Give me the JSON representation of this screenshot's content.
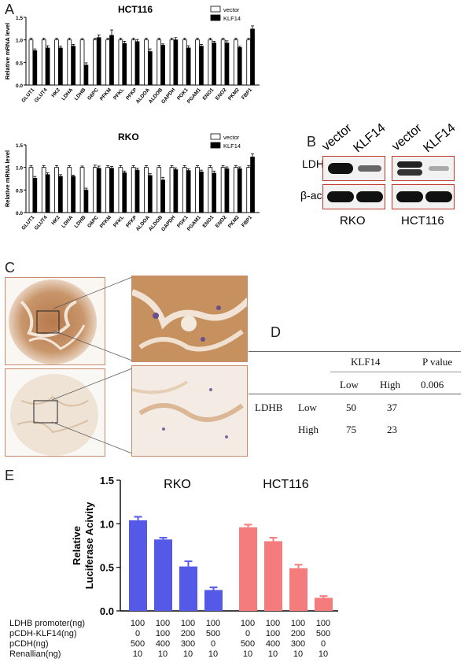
{
  "panels": {
    "a": "A",
    "b": "B",
    "c": "C",
    "d": "D",
    "e": "E"
  },
  "chart_data": [
    {
      "type": "bar",
      "title": "HCT116",
      "ylabel": "Relative mRNA level",
      "ylim": [
        0,
        1.5
      ],
      "yticks": [
        "0.0",
        "0.5",
        "1.0",
        "1.5"
      ],
      "categories": [
        "GLUT1",
        "GLUT4",
        "HK2",
        "LDHA",
        "LDHB",
        "G6PC",
        "PFKM",
        "PFKL",
        "PFKP",
        "ALDOA",
        "ALDOB",
        "GAPDH",
        "PGK1",
        "PGAM1",
        "ENO1",
        "ENO2",
        "PKM2",
        "FBP1"
      ],
      "series": [
        {
          "name": "vector",
          "color": "#ffffff",
          "values": [
            1,
            1,
            1,
            1,
            1,
            1,
            1,
            1,
            1,
            1,
            1,
            1,
            1,
            1,
            1,
            1,
            1,
            1
          ],
          "err": [
            0.04,
            0.04,
            0.04,
            0.04,
            0.03,
            0.04,
            0.04,
            0.04,
            0.04,
            0.04,
            0.04,
            0.04,
            0.04,
            0.04,
            0.04,
            0.04,
            0.04,
            0.04
          ]
        },
        {
          "name": "KLF14",
          "color": "#000000",
          "values": [
            0.76,
            0.82,
            0.82,
            0.86,
            0.44,
            1.05,
            1.1,
            0.92,
            0.96,
            0.74,
            0.88,
            1.0,
            0.82,
            0.86,
            0.93,
            0.93,
            0.83,
            1.24
          ],
          "err": [
            0.04,
            0.05,
            0.04,
            0.04,
            0.05,
            0.06,
            0.12,
            0.05,
            0.05,
            0.06,
            0.03,
            0.05,
            0.05,
            0.04,
            0.04,
            0.05,
            0.03,
            0.07
          ]
        }
      ]
    },
    {
      "type": "bar",
      "title": "RKO",
      "ylabel": "Relative mRNA level",
      "ylim": [
        0,
        1.5
      ],
      "yticks": [
        "0.0",
        "0.5",
        "1.0",
        "1.5"
      ],
      "categories": [
        "GLUT1",
        "GLUT4",
        "HK2",
        "LDHA",
        "LDHB",
        "G6PC",
        "PFKM",
        "PFKL",
        "PFKP",
        "ALDOA",
        "ALDOB",
        "GAPDH",
        "PGK1",
        "PGAM1",
        "ENO1",
        "ENO2",
        "PKM2",
        "FBP1"
      ],
      "series": [
        {
          "name": "vector",
          "color": "#ffffff",
          "values": [
            1,
            1,
            1,
            1,
            1,
            1,
            1,
            1,
            1,
            1,
            1,
            1,
            1,
            1,
            1,
            1,
            1,
            1
          ],
          "err": [
            0.04,
            0.04,
            0.04,
            0.04,
            0.03,
            0.05,
            0.04,
            0.04,
            0.04,
            0.04,
            0.04,
            0.04,
            0.04,
            0.04,
            0.04,
            0.04,
            0.04,
            0.04
          ]
        },
        {
          "name": "KLF14",
          "color": "#000000",
          "values": [
            0.76,
            0.84,
            0.8,
            0.8,
            0.5,
            0.98,
            0.98,
            0.88,
            0.94,
            0.82,
            0.72,
            0.95,
            0.93,
            0.9,
            0.87,
            0.97,
            0.97,
            1.23
          ],
          "err": [
            0.04,
            0.04,
            0.04,
            0.03,
            0.04,
            0.05,
            0.04,
            0.04,
            0.04,
            0.04,
            0.06,
            0.04,
            0.04,
            0.04,
            0.05,
            0.04,
            0.04,
            0.07
          ]
        }
      ]
    },
    {
      "type": "bar",
      "ylabel_lines": [
        "Relative",
        "Luciferase Acivity"
      ],
      "ylim": [
        0,
        1.5
      ],
      "yticks": [
        "0.0",
        "0.5",
        "1.0",
        "1.5"
      ],
      "groups": [
        {
          "name": "RKO",
          "color": "#5559e8",
          "values": [
            1.04,
            0.82,
            0.51,
            0.24
          ],
          "err": [
            0.04,
            0.02,
            0.06,
            0.03
          ]
        },
        {
          "name": "HCT116",
          "color": "#f47c7c",
          "values": [
            0.96,
            0.8,
            0.49,
            0.15
          ],
          "err": [
            0.03,
            0.04,
            0.04,
            0.02
          ]
        }
      ]
    }
  ],
  "western": {
    "col_labels": [
      "vector",
      "KLF14",
      "vector",
      "KLF14"
    ],
    "row_labels": [
      "LDHB",
      "β-actin"
    ],
    "cell_lines": [
      "RKO",
      "HCT116"
    ]
  },
  "table": {
    "header": [
      "KLF14",
      "P value"
    ],
    "subheader": [
      "Low",
      "High"
    ],
    "p_value": "0.006",
    "row_group": "LDHB",
    "rows": [
      {
        "label": "Low",
        "low": "50",
        "high": "37"
      },
      {
        "label": "High",
        "low": "75",
        "high": "23"
      }
    ]
  },
  "luciferase_conditions": {
    "rows": [
      {
        "label": "LDHB promoter(ng)",
        "values": [
          "100",
          "100",
          "100",
          "100",
          "100",
          "100",
          "100",
          "100"
        ]
      },
      {
        "label": "pCDH-KLF14(ng)",
        "values": [
          "0",
          "100",
          "200",
          "500",
          "0",
          "100",
          "200",
          "500"
        ]
      },
      {
        "label": "pCDH(ng)",
        "values": [
          "500",
          "400",
          "300",
          "0",
          "500",
          "400",
          "300",
          "0"
        ]
      },
      {
        "label": "Renallian(ng)",
        "values": [
          "10",
          "10",
          "10",
          "10",
          "10",
          "10",
          "10",
          "10"
        ]
      }
    ]
  }
}
